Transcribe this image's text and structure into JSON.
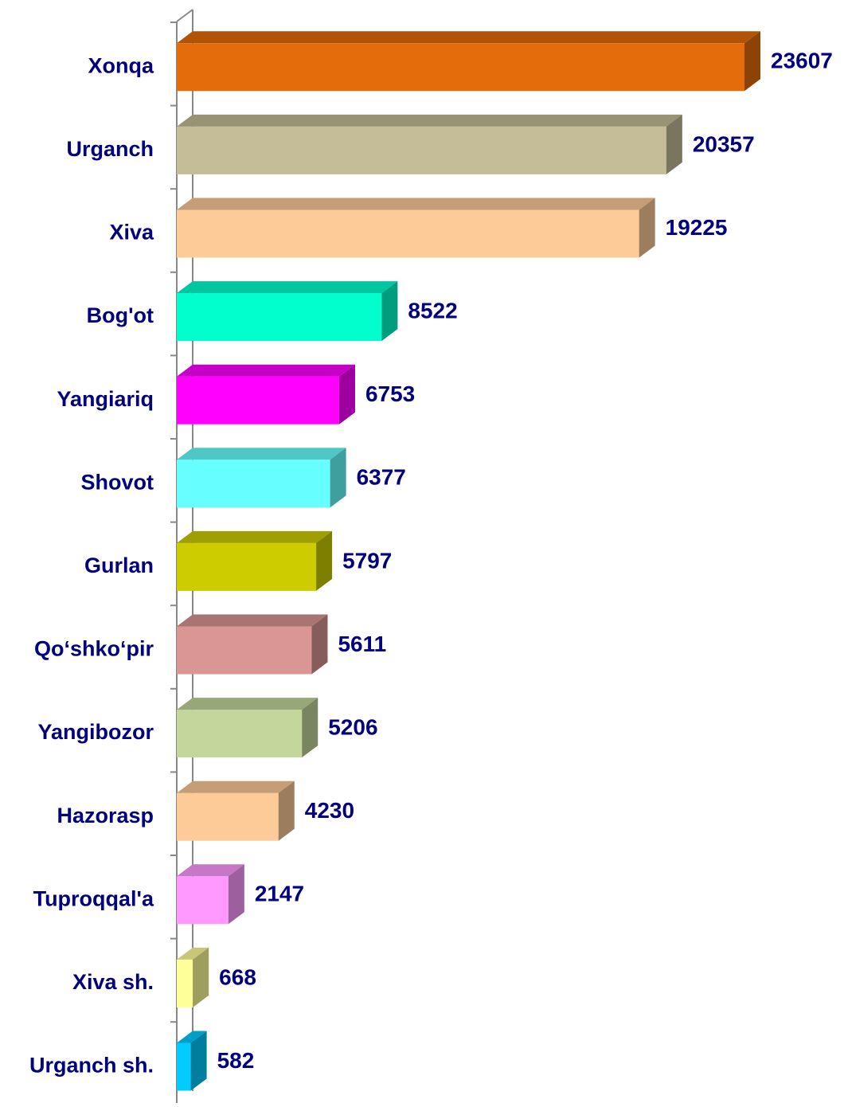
{
  "chart_data": {
    "type": "bar3d_horizontal",
    "categories": [
      "Xonqa",
      "Urganch",
      "Xiva",
      "Bog'ot",
      "Yangiariq",
      "Shovot",
      "Gurlan",
      "Qo‘shko‘pir",
      "Yangibozor",
      "Hazorasp",
      "Tuproqqal'a",
      "Xiva sh.",
      "Urganch sh."
    ],
    "values": [
      23607,
      20357,
      19225,
      8522,
      6753,
      6377,
      5797,
      5611,
      5206,
      4230,
      2147,
      668,
      582
    ],
    "colors": [
      "#e46c0a",
      "#c4bd97",
      "#fccb98",
      "#00ffcc",
      "#ff00ff",
      "#66ffff",
      "#cccc00",
      "#d99694",
      "#c3d69b",
      "#fccb98",
      "#ff99ff",
      "#ffff99",
      "#00ccff"
    ]
  }
}
